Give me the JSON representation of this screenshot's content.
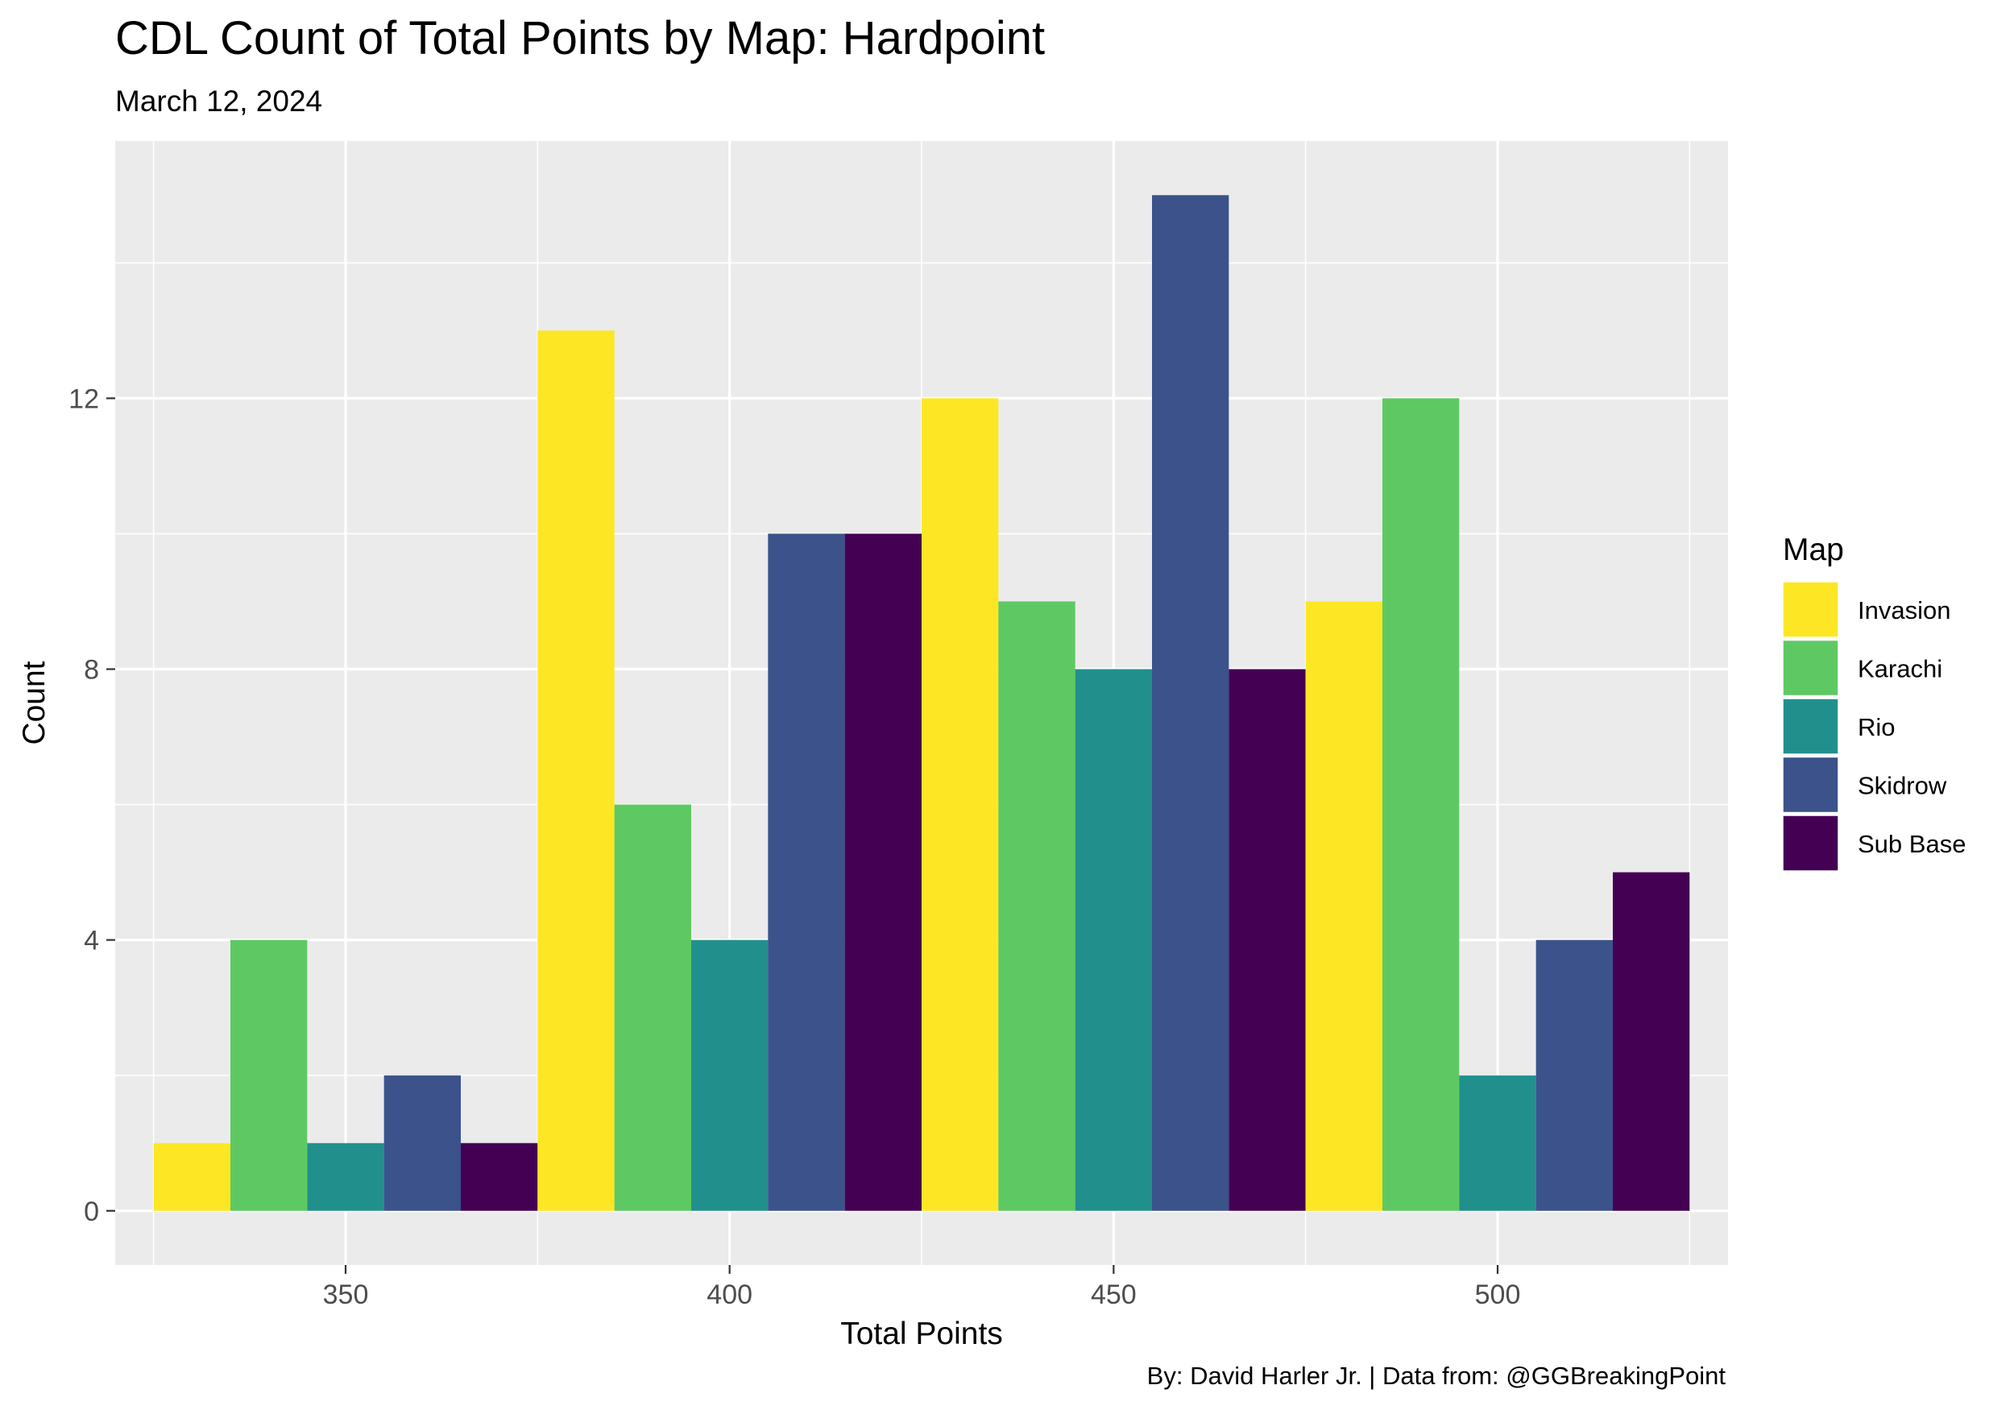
{
  "chart_data": {
    "type": "bar",
    "title": "CDL Count of Total Points by Map: Hardpoint",
    "subtitle": "March 12, 2024",
    "caption": "By: David Harler Jr. | Data from: @GGBreakingPoint",
    "xlabel": "Total Points",
    "ylabel": "Count",
    "xlim": [
      320,
      530
    ],
    "ylim": [
      -0.8,
      15.8
    ],
    "x_ticks": [
      350,
      400,
      450,
      500
    ],
    "y_ticks": [
      0,
      4,
      8,
      12
    ],
    "grid": true,
    "legend_position": "right",
    "legend_title": "Map",
    "categories": [
      "Invasion",
      "Karachi",
      "Rio",
      "Skidrow",
      "Sub Base"
    ],
    "colors": {
      "Invasion": "#FDE725",
      "Karachi": "#5EC962",
      "Rio": "#21908C",
      "Skidrow": "#3B528B",
      "Sub Base": "#440154"
    },
    "bars": [
      {
        "x0": 325,
        "x1": 335,
        "map": "Invasion",
        "count": 1
      },
      {
        "x0": 335,
        "x1": 345,
        "map": "Karachi",
        "count": 4
      },
      {
        "x0": 345,
        "x1": 355,
        "map": "Rio",
        "count": 1
      },
      {
        "x0": 355,
        "x1": 365,
        "map": "Skidrow",
        "count": 2
      },
      {
        "x0": 365,
        "x1": 375,
        "map": "Sub Base",
        "count": 1
      },
      {
        "x0": 375,
        "x1": 385,
        "map": "Invasion",
        "count": 13
      },
      {
        "x0": 385,
        "x1": 395,
        "map": "Karachi",
        "count": 6
      },
      {
        "x0": 395,
        "x1": 405,
        "map": "Rio",
        "count": 4
      },
      {
        "x0": 405,
        "x1": 415,
        "map": "Skidrow",
        "count": 10
      },
      {
        "x0": 415,
        "x1": 425,
        "map": "Sub Base",
        "count": 10
      },
      {
        "x0": 425,
        "x1": 435,
        "map": "Invasion",
        "count": 12
      },
      {
        "x0": 435,
        "x1": 445,
        "map": "Karachi",
        "count": 9
      },
      {
        "x0": 445,
        "x1": 455,
        "map": "Rio",
        "count": 8
      },
      {
        "x0": 455,
        "x1": 465,
        "map": "Skidrow",
        "count": 15
      },
      {
        "x0": 465,
        "x1": 475,
        "map": "Sub Base",
        "count": 8
      },
      {
        "x0": 475,
        "x1": 485,
        "map": "Invasion",
        "count": 9
      },
      {
        "x0": 485,
        "x1": 495,
        "map": "Karachi",
        "count": 12
      },
      {
        "x0": 495,
        "x1": 505,
        "map": "Rio",
        "count": 2
      },
      {
        "x0": 505,
        "x1": 515,
        "map": "Skidrow",
        "count": 4
      },
      {
        "x0": 515,
        "x1": 525,
        "map": "Sub Base",
        "count": 5
      }
    ]
  }
}
